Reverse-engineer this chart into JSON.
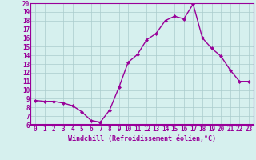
{
  "x": [
    0,
    1,
    2,
    3,
    4,
    5,
    6,
    7,
    8,
    9,
    10,
    11,
    12,
    13,
    14,
    15,
    16,
    17,
    18,
    19,
    20,
    21,
    22,
    23
  ],
  "y": [
    8.8,
    8.7,
    8.7,
    8.5,
    8.2,
    7.5,
    6.5,
    6.3,
    7.7,
    10.3,
    13.2,
    14.1,
    15.8,
    16.5,
    18.0,
    18.5,
    18.2,
    19.9,
    16.0,
    14.8,
    13.9,
    12.3,
    11.0,
    11.0
  ],
  "line_color": "#990099",
  "marker": "D",
  "marker_size": 2,
  "xlim": [
    -0.5,
    23.5
  ],
  "ylim": [
    6,
    20
  ],
  "yticks": [
    6,
    7,
    8,
    9,
    10,
    11,
    12,
    13,
    14,
    15,
    16,
    17,
    18,
    19,
    20
  ],
  "xticks": [
    0,
    1,
    2,
    3,
    4,
    5,
    6,
    7,
    8,
    9,
    10,
    11,
    12,
    13,
    14,
    15,
    16,
    17,
    18,
    19,
    20,
    21,
    22,
    23
  ],
  "xlabel": "Windchill (Refroidissement éolien,°C)",
  "background_color": "#d6f0ee",
  "grid_color": "#aacccc",
  "label_color": "#990099",
  "tick_color": "#990099",
  "spine_color": "#990099",
  "tick_fontsize": 5.5,
  "xlabel_fontsize": 6.0,
  "linewidth": 1.0
}
